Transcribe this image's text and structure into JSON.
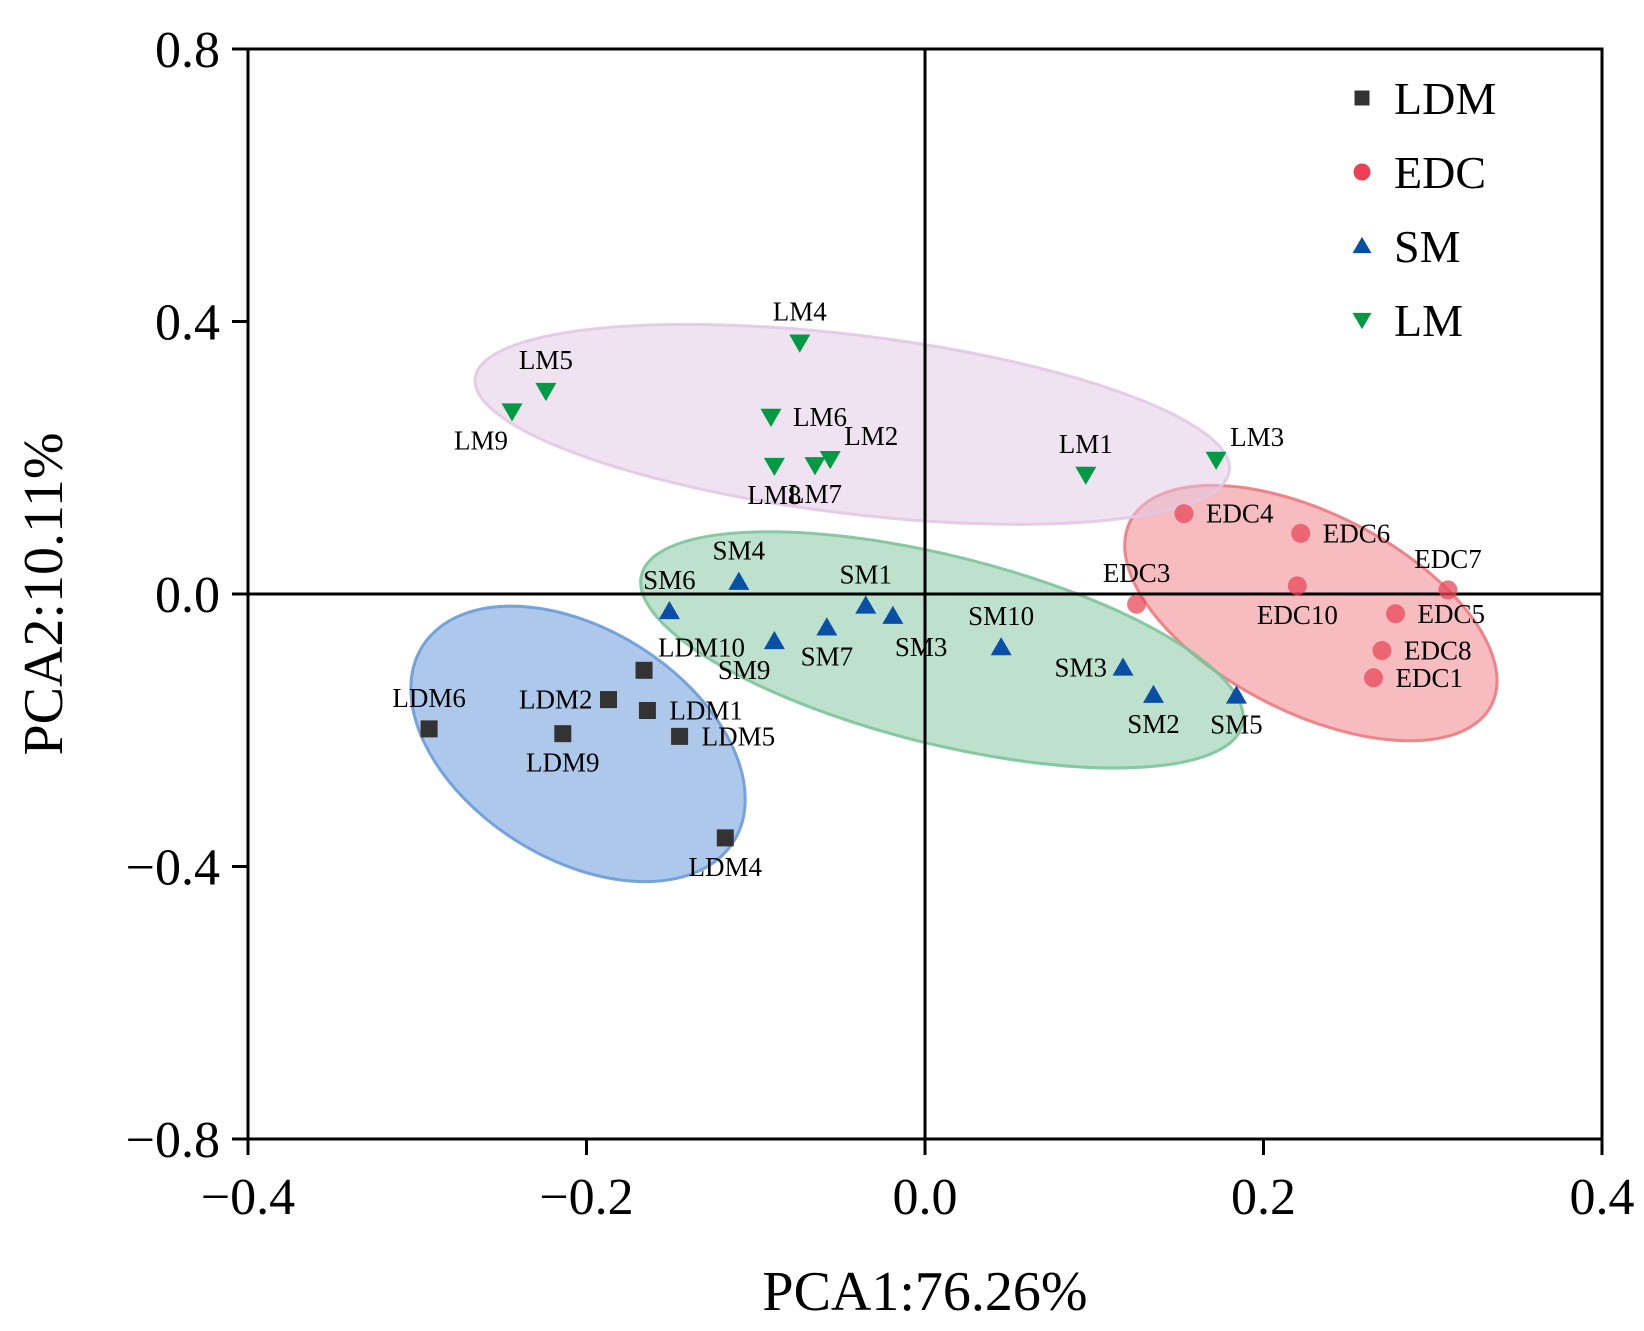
{
  "chart_data": {
    "type": "scatter",
    "title": "",
    "xlabel": "PCA1:76.26%",
    "ylabel": "PCA2:10.11%",
    "xlim": [
      -0.4,
      0.4
    ],
    "ylim": [
      -0.8,
      0.8
    ],
    "xticks": [
      -0.4,
      -0.2,
      0.0,
      0.2,
      0.4
    ],
    "xtick_labels": [
      "−0.4",
      "−0.2",
      "0.0",
      "0.2",
      "0.4"
    ],
    "yticks": [
      -0.8,
      -0.4,
      0.0,
      0.4,
      0.8
    ],
    "ytick_labels": [
      "−0.8",
      "−0.4",
      "0.0",
      "0.4",
      "0.8"
    ],
    "grid": false,
    "zero_lines": true,
    "legend_position": "top-right",
    "series": [
      {
        "name": "LDM",
        "marker": "square",
        "color": "#333333",
        "ellipse": {
          "color": "#6a9bd8",
          "fill_opacity": 0.55,
          "center": [
            -0.205,
            -0.22
          ],
          "major": [
            0.092,
            -0.143
          ],
          "minor": [
            0.036,
            0.143
          ]
        },
        "points": [
          {
            "label": "LDM1",
            "x": -0.164,
            "y": -0.171,
            "label_pos": "right"
          },
          {
            "label": "LDM2",
            "x": -0.187,
            "y": -0.155,
            "label_pos": "left"
          },
          {
            "label": "LDM4",
            "x": -0.118,
            "y": -0.358,
            "label_pos": "below"
          },
          {
            "label": "LDM5",
            "x": -0.145,
            "y": -0.209,
            "label_pos": "right"
          },
          {
            "label": "LDM6",
            "x": -0.293,
            "y": -0.198,
            "label_pos": "above"
          },
          {
            "label": "LDM9",
            "x": -0.214,
            "y": -0.205,
            "label_pos": "below"
          },
          {
            "label": "LDM10",
            "x": -0.166,
            "y": -0.112,
            "label_pos": "above-right"
          }
        ]
      },
      {
        "name": "EDC",
        "marker": "circle",
        "color": "#e8001c",
        "ellipse": {
          "color": "#ee7a80",
          "fill_opacity": 0.5,
          "center": [
            0.228,
            -0.028
          ],
          "major": [
            0.1067,
            -0.135
          ],
          "minor": [
            0.0267,
            0.13
          ]
        },
        "points": [
          {
            "label": "EDC1",
            "x": 0.265,
            "y": -0.123,
            "label_pos": "right"
          },
          {
            "label": "EDC3",
            "x": 0.125,
            "y": -0.015,
            "label_pos": "above"
          },
          {
            "label": "EDC4",
            "x": 0.153,
            "y": 0.118,
            "label_pos": "right"
          },
          {
            "label": "EDC5",
            "x": 0.278,
            "y": -0.029,
            "label_pos": "right"
          },
          {
            "label": "EDC6",
            "x": 0.222,
            "y": 0.089,
            "label_pos": "right"
          },
          {
            "label": "EDC7",
            "x": 0.309,
            "y": 0.006,
            "label_pos": "above"
          },
          {
            "label": "EDC8",
            "x": 0.27,
            "y": -0.083,
            "label_pos": "right"
          },
          {
            "label": "EDC10",
            "x": 0.22,
            "y": 0.012,
            "label_pos": "below"
          }
        ]
      },
      {
        "name": "SM",
        "marker": "triangle-up",
        "color": "#0a4fa6",
        "ellipse": {
          "color": "#7cc49a",
          "fill_opacity": 0.5,
          "center": [
            0.01,
            -0.082
          ],
          "major": [
            0.1775,
            -0.11
          ],
          "minor": [
            0.0135,
            0.134
          ]
        },
        "points": [
          {
            "label": "SM1",
            "x": -0.035,
            "y": -0.017,
            "label_pos": "above"
          },
          {
            "label": "SM2",
            "x": 0.135,
            "y": -0.148,
            "label_pos": "below"
          },
          {
            "label": "SM3",
            "x": -0.019,
            "y": -0.032,
            "label_pos": "below-right"
          },
          {
            "label": "SM3",
            "x": 0.117,
            "y": -0.108,
            "label_pos": "left"
          },
          {
            "label": "SM4",
            "x": -0.11,
            "y": 0.018,
            "label_pos": "above"
          },
          {
            "label": "SM5",
            "x": 0.184,
            "y": -0.149,
            "label_pos": "below"
          },
          {
            "label": "SM6",
            "x": -0.151,
            "y": -0.025,
            "label_pos": "above"
          },
          {
            "label": "SM7",
            "x": -0.058,
            "y": -0.049,
            "label_pos": "below"
          },
          {
            "label": "SM9",
            "x": -0.089,
            "y": -0.069,
            "label_pos": "below-left"
          },
          {
            "label": "SM10",
            "x": 0.045,
            "y": -0.078,
            "label_pos": "above"
          }
        ]
      },
      {
        "name": "LM",
        "marker": "triangle-down",
        "color": "#009a44",
        "ellipse": {
          "color": "#e2c8e4",
          "fill_opacity": 0.5,
          "center": [
            -0.043,
            0.249
          ],
          "major": [
            0.2228,
            -0.068
          ],
          "minor": [
            0.0064,
            0.13
          ]
        },
        "points": [
          {
            "label": "LM1",
            "x": 0.095,
            "y": 0.175,
            "label_pos": "above"
          },
          {
            "label": "LM2",
            "x": -0.056,
            "y": 0.198,
            "label_pos": "above-right"
          },
          {
            "label": "LM3",
            "x": 0.172,
            "y": 0.197,
            "label_pos": "above-right"
          },
          {
            "label": "LM4",
            "x": -0.074,
            "y": 0.369,
            "label_pos": "above"
          },
          {
            "label": "LM5",
            "x": -0.224,
            "y": 0.298,
            "label_pos": "above"
          },
          {
            "label": "LM6",
            "x": -0.091,
            "y": 0.26,
            "label_pos": "right"
          },
          {
            "label": "LM7",
            "x": -0.065,
            "y": 0.189,
            "label_pos": "below"
          },
          {
            "label": "LM8",
            "x": -0.089,
            "y": 0.188,
            "label_pos": "below"
          },
          {
            "label": "LM9",
            "x": -0.244,
            "y": 0.268,
            "label_pos": "below-left"
          }
        ]
      }
    ]
  }
}
